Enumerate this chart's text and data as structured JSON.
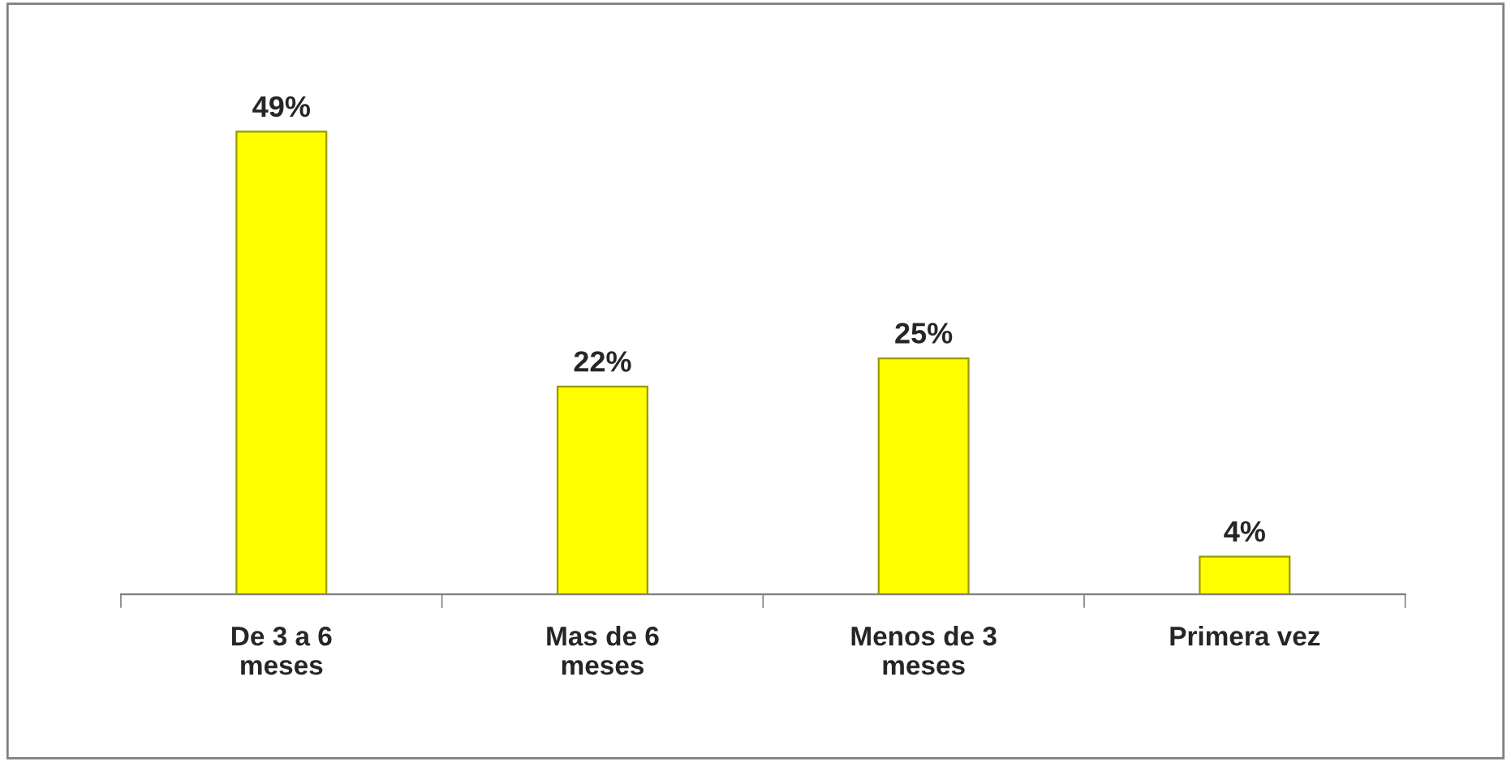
{
  "chart_data": {
    "type": "bar",
    "categories": [
      "De 3 a 6\nmeses",
      "Mas de 6\nmeses",
      "Menos de 3\nmeses",
      "Primera vez"
    ],
    "values": [
      49,
      22,
      25,
      4
    ],
    "value_labels": [
      "49%",
      "22%",
      "25%",
      "4%"
    ],
    "color": "#ffff00",
    "grid": false,
    "legend": false
  }
}
